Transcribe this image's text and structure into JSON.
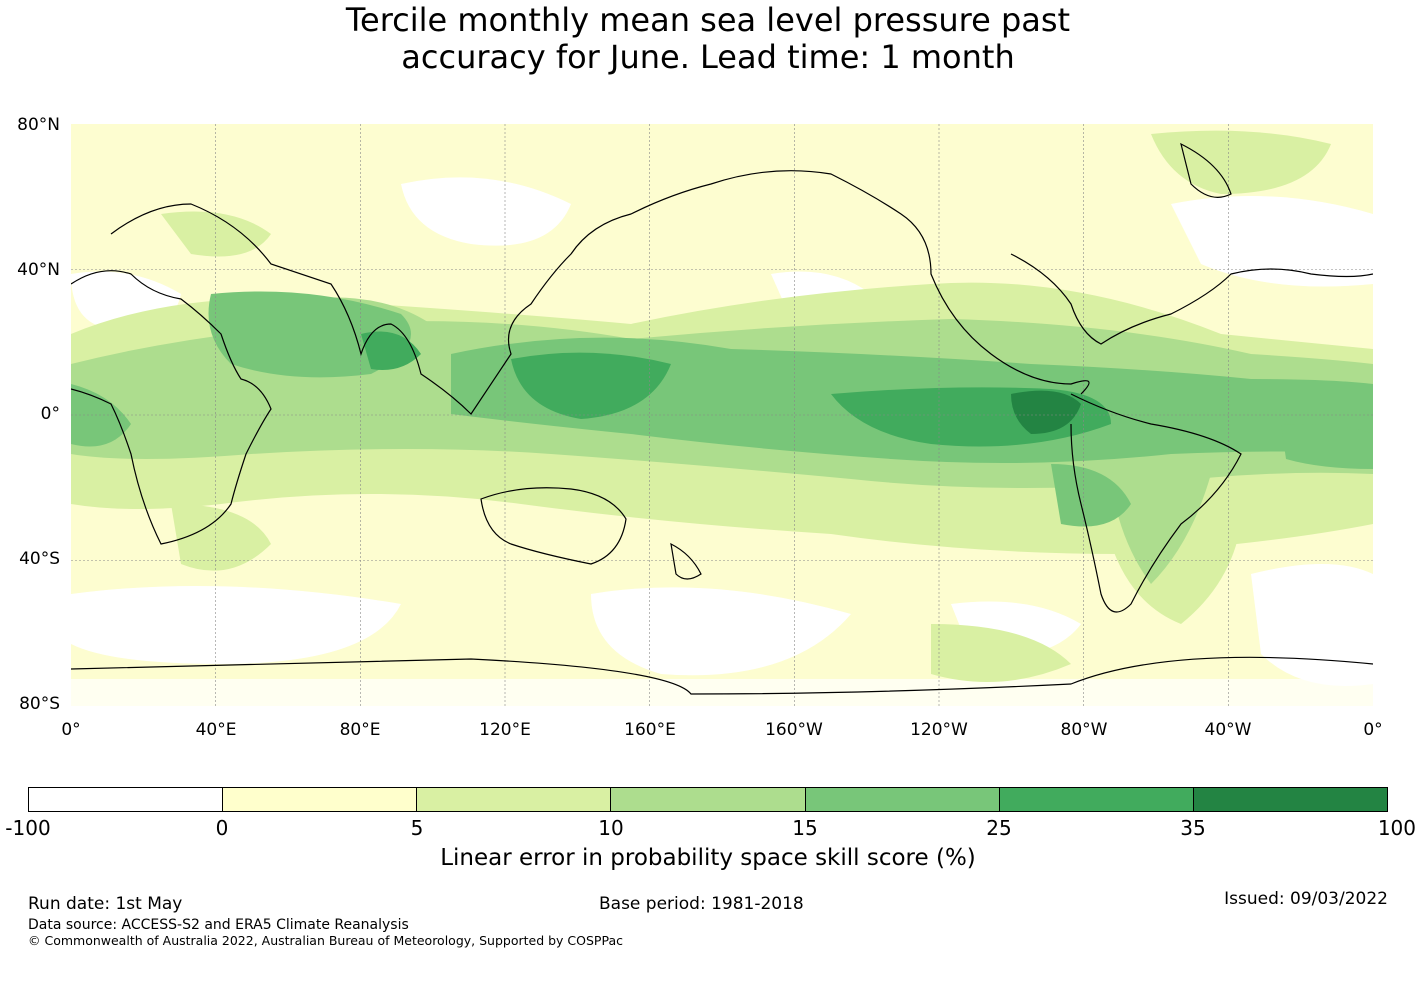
{
  "title": {
    "line1": "Tercile monthly mean sea level pressure past",
    "line2": "accuracy for June. Lead time: 1 month"
  },
  "map": {
    "projection": "equirectangular",
    "lon_range": [
      0,
      360
    ],
    "lat_range": [
      -80,
      80
    ],
    "lat_ticks": [
      "80°N",
      "40°N",
      "0°",
      "40°S",
      "80°S"
    ],
    "lon_ticks": [
      "0°",
      "40°E",
      "80°E",
      "120°E",
      "160°E",
      "160°W",
      "120°W",
      "80°W",
      "40°W",
      "0°"
    ],
    "ocean_background": "#fdfdd0",
    "features": {
      "tropical_band": "Strongest skill (25–100%) over equatorial eastern Pacific and western tropical Pacific/Maritime Continent",
      "low_skill": "Negative/near-zero skill over Southern Ocean, North Atlantic high latitudes, central Asia"
    }
  },
  "colorbar": {
    "ticks": [
      "-100",
      "0",
      "5",
      "10",
      "15",
      "25",
      "35",
      "100"
    ],
    "colors": [
      "#ffffff",
      "#ffffcc",
      "#d9f0a3",
      "#addd8e",
      "#78c679",
      "#41ab5d",
      "#238443"
    ],
    "label": "Linear error in probability space skill score (%)"
  },
  "footer": {
    "run_date": "Run date: 1st May",
    "base_period": "Base period: 1981-2018",
    "issued": "Issued: 09/03/2022",
    "data_source": "Data source: ACCESS-S2 and ERA5 Climate Reanalysis",
    "copyright": "© Commonwealth of Australia 2022, Australian Bureau of Meteorology, Supported by COSPPac"
  }
}
